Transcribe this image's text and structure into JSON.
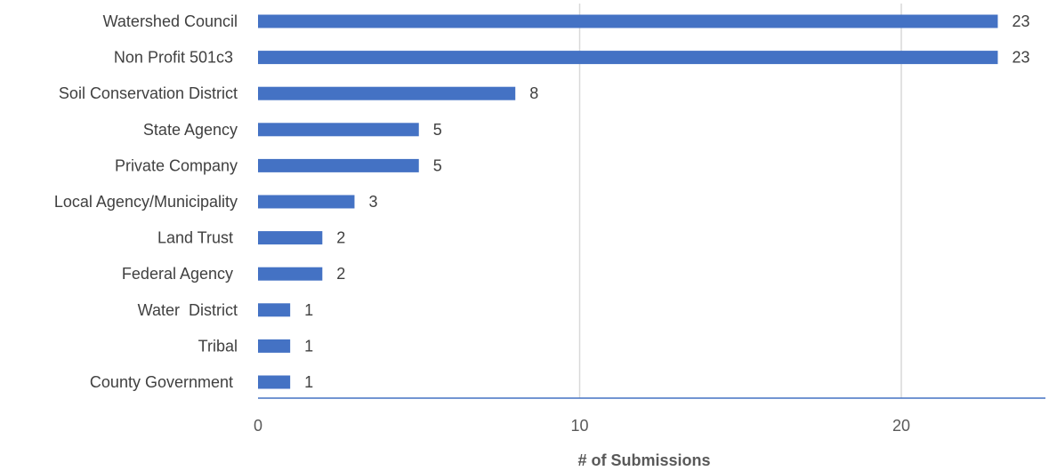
{
  "chart_data": {
    "type": "bar",
    "orientation": "horizontal",
    "categories": [
      "Watershed Council",
      "Non Profit 501c3 ",
      "Soil Conservation District",
      "State Agency",
      "Private Company",
      "Local Agency/Municipality",
      "Land Trust ",
      "Federal Agency ",
      "Water  District",
      "Tribal",
      "County Government "
    ],
    "values": [
      23,
      23,
      8,
      5,
      5,
      3,
      2,
      2,
      1,
      1,
      1
    ],
    "data_labels": [
      "23",
      "23",
      "8",
      "5",
      "5",
      "3",
      "2",
      "2",
      "1",
      "1",
      "1"
    ],
    "xticks": [
      0,
      10,
      20
    ],
    "xtick_labels": [
      "0",
      "10",
      "20"
    ],
    "xlim": [
      0,
      25
    ],
    "xlabel": "# of Submissions",
    "ylabel": "",
    "title": "",
    "grid": "vertical",
    "legend": "none",
    "bar_color": "#4472c4"
  }
}
